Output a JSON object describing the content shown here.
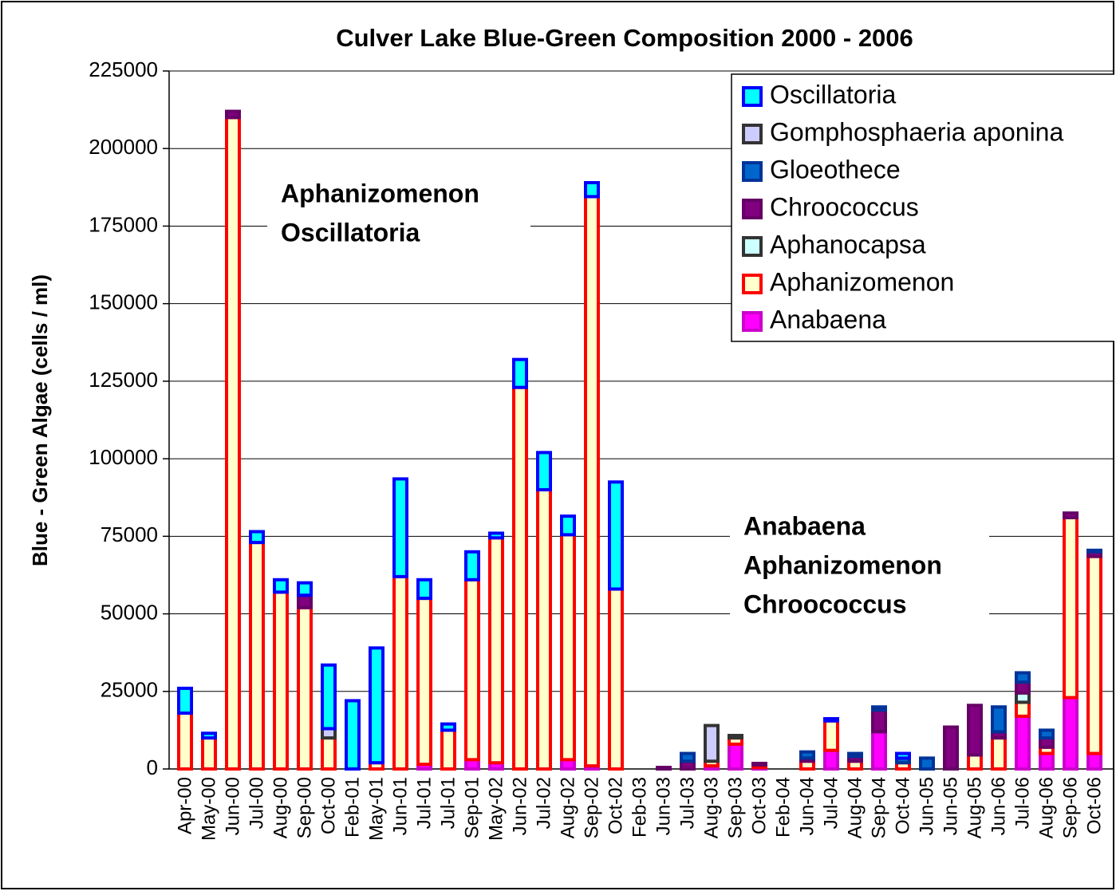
{
  "chart_data": {
    "type": "bar",
    "stacked": true,
    "title": "Culver Lake Blue-Green Composition  2000 - 2006",
    "y_label": "Blue - Green Algae (cells / ml)",
    "annotations": [
      [
        "Aphanizomenon",
        "Oscillatoria"
      ],
      [
        "Anabaena",
        "Aphanizomenon",
        "Chroococcus"
      ]
    ],
    "categories": [
      "Apr-00",
      "May-00",
      "Jun-00",
      "Jul-00",
      "Aug-00",
      "Sep-00",
      "Oct-00",
      "Feb-01",
      "May-01",
      "Jun-01",
      "Jul-01",
      "Jul-01",
      "Sep-01",
      "May-02",
      "Jun-02",
      "Jul-02",
      "Aug-02",
      "Sep-02",
      "Oct-02",
      "Feb-03",
      "Jun-03",
      "Jul-03",
      "Aug-03",
      "Sep-03",
      "Oct-03",
      "Feb-04",
      "Jun-04",
      "Jul-04",
      "Aug-04",
      "Sep-04",
      "Oct-04",
      "Jun-05",
      "Jun-05",
      "Aug-05",
      "Jun-06",
      "Jul-06",
      "Aug-06",
      "Sep-06",
      "Oct-06"
    ],
    "series": [
      {
        "name": "Oscillatoria",
        "color": "#00ffff",
        "edgecolor": "#0000ff",
        "values": [
          8000,
          1500,
          0,
          3500,
          4000,
          4000,
          20500,
          22000,
          37000,
          31500,
          6000,
          2000,
          9000,
          1500,
          9000,
          12000,
          6000,
          4500,
          34500,
          0,
          0,
          0,
          0,
          0,
          0,
          0,
          0,
          700,
          0,
          0,
          1500,
          0,
          0,
          0,
          0,
          0,
          0,
          0,
          0
        ]
      },
      {
        "name": "Gomphosphaeria aponina",
        "color": "#ccccff",
        "edgecolor": "#333333",
        "values": [
          0,
          0,
          0,
          0,
          0,
          0,
          3000,
          0,
          0,
          0,
          0,
          0,
          0,
          0,
          0,
          0,
          0,
          0,
          0,
          0,
          0,
          0,
          11500,
          800,
          0,
          0,
          0,
          0,
          0,
          0,
          0,
          0,
          0,
          0,
          0,
          0,
          0,
          0,
          0
        ]
      },
      {
        "name": "Gloeothece",
        "color": "#0066cc",
        "edgecolor": "#003399",
        "values": [
          0,
          0,
          0,
          0,
          0,
          0,
          0,
          0,
          0,
          0,
          0,
          0,
          0,
          0,
          0,
          0,
          0,
          0,
          0,
          0,
          0,
          2500,
          0,
          0,
          0,
          0,
          2000,
          0,
          1000,
          1000,
          1500,
          3500,
          0,
          0,
          8000,
          3000,
          2500,
          0,
          500
        ]
      },
      {
        "name": "Chroococcus",
        "color": "#800080",
        "edgecolor": "#660066",
        "values": [
          0,
          0,
          2000,
          0,
          0,
          4000,
          0,
          0,
          0,
          0,
          0,
          0,
          0,
          0,
          0,
          0,
          0,
          0,
          0,
          0,
          500,
          2500,
          0,
          0,
          500,
          0,
          1000,
          0,
          1500,
          7000,
          0,
          0,
          13500,
          16000,
          2000,
          3500,
          3000,
          1500,
          1500
        ]
      },
      {
        "name": "Aphanocapsa",
        "color": "#ccffff",
        "edgecolor": "#333333",
        "values": [
          0,
          0,
          0,
          0,
          0,
          0,
          0,
          0,
          0,
          0,
          0,
          0,
          0,
          0,
          0,
          0,
          0,
          0,
          0,
          0,
          0,
          0,
          0,
          0,
          0,
          0,
          0,
          0,
          0,
          0,
          0,
          0,
          0,
          0,
          0,
          3000,
          0,
          0,
          0
        ]
      },
      {
        "name": "Aphanizomenon",
        "color": "#ffffcc",
        "edgecolor": "#ff0000",
        "values": [
          18000,
          10000,
          210000,
          73000,
          57000,
          52000,
          10000,
          0,
          2000,
          62000,
          53500,
          12500,
          58000,
          72500,
          123000,
          90000,
          72500,
          183500,
          58000,
          0,
          0,
          0,
          1500,
          2000,
          800,
          0,
          2500,
          9500,
          2500,
          0,
          2000,
          0,
          0,
          4500,
          10000,
          4500,
          2000,
          58000,
          63500
        ]
      },
      {
        "name": "Anabaena",
        "color": "#ff00ff",
        "edgecolor": "#cc00cc",
        "values": [
          0,
          0,
          0,
          0,
          0,
          0,
          0,
          0,
          0,
          0,
          1500,
          0,
          3000,
          2000,
          0,
          0,
          3000,
          1000,
          0,
          0,
          0,
          0,
          1000,
          8000,
          500,
          0,
          0,
          6000,
          0,
          12000,
          0,
          0,
          0,
          0,
          0,
          17000,
          5000,
          23000,
          5000
        ]
      }
    ],
    "ylim": [
      0,
      225000
    ],
    "yticks": [
      0,
      25000,
      50000,
      75000,
      100000,
      125000,
      150000,
      175000,
      200000,
      225000
    ],
    "grid": true,
    "legend": "top-right"
  }
}
